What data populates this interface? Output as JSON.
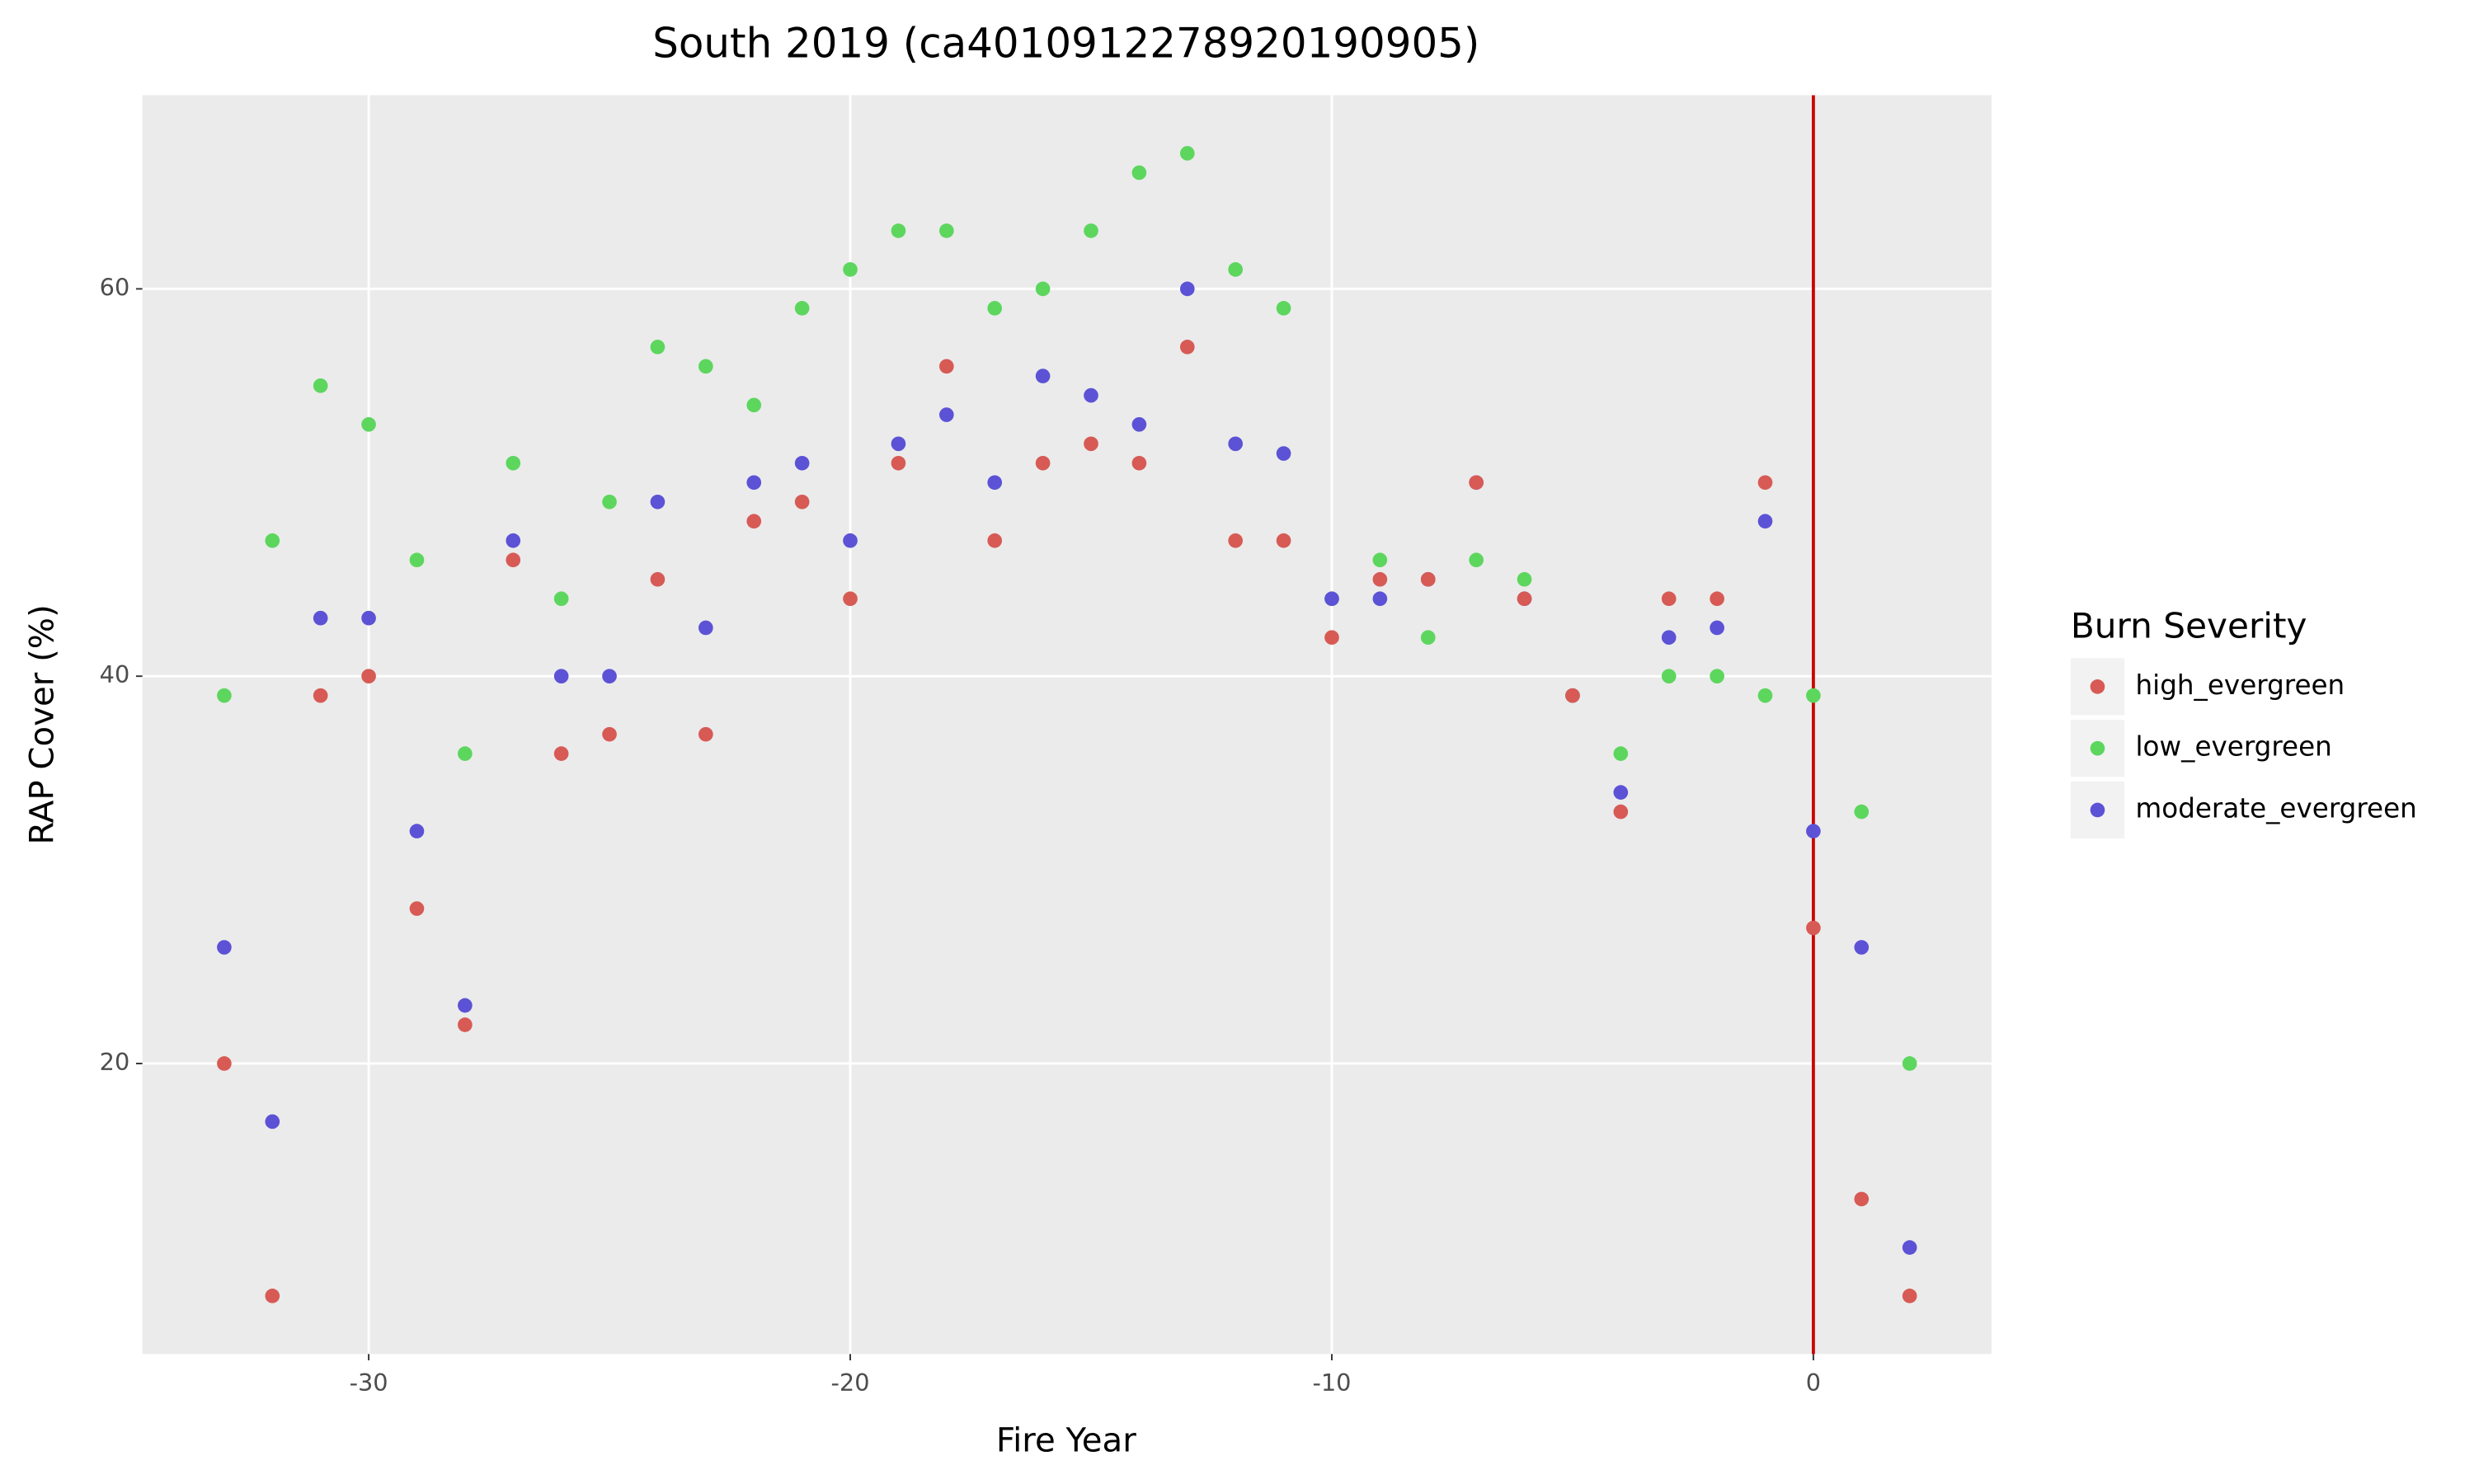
{
  "chart_data": {
    "type": "scatter",
    "title": "South 2019 (ca4010912278920190905)",
    "x_label": "Fire Year",
    "y_label": "RAP Cover (%)",
    "legend_title": "Burn Severity",
    "legend_position": "right",
    "x": [
      -33,
      -32,
      -31,
      -30,
      -29,
      -28,
      -27,
      -26,
      -25,
      -24,
      -23,
      -22,
      -21,
      -20,
      -19,
      -18,
      -17,
      -16,
      -15,
      -14,
      -13,
      -12,
      -11,
      -10,
      -9,
      -8,
      -7,
      -6,
      -5,
      -4,
      -3,
      -2,
      -1,
      0,
      1,
      2
    ],
    "series": [
      {
        "name": "high_evergreen",
        "color": "#d75a55",
        "values": [
          20,
          8,
          39,
          40,
          28,
          22,
          46,
          36,
          37,
          45,
          37,
          48,
          49,
          44,
          51,
          56,
          47,
          51,
          52,
          51,
          57,
          47,
          47,
          42,
          45,
          45,
          50,
          44,
          39,
          33,
          44,
          44,
          50,
          27,
          13,
          8
        ]
      },
      {
        "name": "low_evergreen",
        "color": "#5dd65e",
        "values": [
          39,
          47,
          55,
          53,
          46,
          36,
          51,
          44,
          49,
          57,
          56,
          54,
          59,
          61,
          63,
          63,
          59,
          60,
          63,
          66,
          67,
          61,
          59,
          44,
          46,
          42,
          46,
          45,
          39,
          36,
          40,
          40,
          39,
          39,
          33,
          20
        ]
      },
      {
        "name": "moderate_evergreen",
        "color": "#5c52d6",
        "values": [
          26,
          17,
          43,
          43,
          32,
          23,
          47,
          40,
          40,
          49,
          42.5,
          50,
          51,
          47,
          52,
          53.5,
          50,
          55.5,
          54.5,
          53,
          60,
          52,
          51.5,
          44,
          44,
          45,
          50,
          44,
          39,
          34,
          42,
          42.5,
          48,
          32,
          26,
          10.5
        ]
      }
    ],
    "xlim": [
      -34.7,
      3.7
    ],
    "ylim": [
      5,
      70
    ],
    "xticks": [
      -30,
      -20,
      -10,
      0
    ],
    "yticks": [
      20,
      40,
      60
    ],
    "grid": true,
    "vline": {
      "x": 0,
      "color": "#cc0000"
    }
  }
}
